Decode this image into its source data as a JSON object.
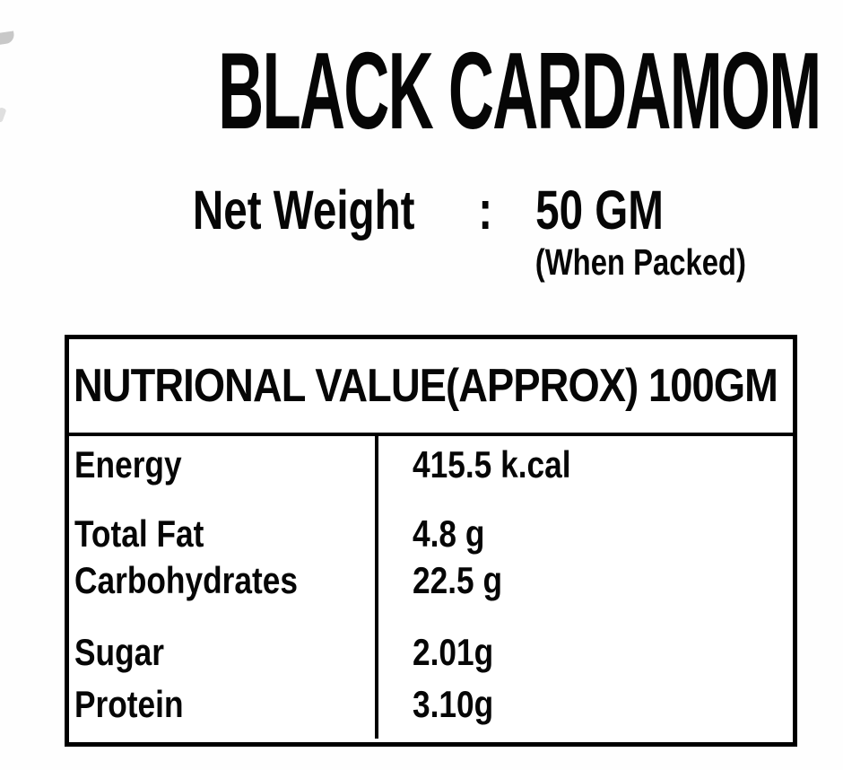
{
  "label": {
    "product_title": "BLACK CARDAMOM",
    "net_weight": {
      "label": "Net Weight",
      "separator": ":",
      "value": "50 GM",
      "note": "(When Packed)"
    }
  },
  "nutrition_table": {
    "header": "NUTRIONAL VALUE(APPROX) 100GM",
    "rows": [
      {
        "label": "Energy",
        "value": "415.5 k.cal"
      },
      {
        "label": "Total Fat",
        "value": "4.8 g"
      },
      {
        "label": "Carbohydrates",
        "value": "22.5 g"
      },
      {
        "label": "Sugar",
        "value": "2.01g"
      },
      {
        "label": "Protein",
        "value": "3.10g"
      }
    ]
  },
  "colors": {
    "text": "#060606",
    "border": "#000000",
    "background": "#fefefe"
  }
}
